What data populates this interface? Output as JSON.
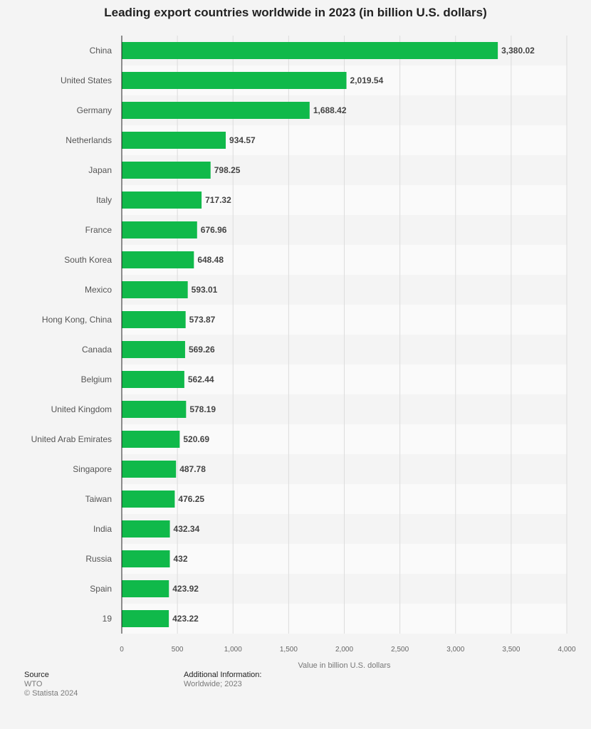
{
  "chart_data": {
    "type": "bar",
    "orientation": "horizontal",
    "title": "Leading export countries worldwide in 2023 (in billion U.S. dollars)",
    "xlabel": "Value in billion U.S. dollars",
    "ylabel": "",
    "xlim": [
      0,
      4000
    ],
    "ticks": [
      0,
      500,
      1000,
      1500,
      2000,
      2500,
      3000,
      3500,
      4000
    ],
    "tick_labels": [
      "0",
      "500",
      "1,000",
      "1,500",
      "2,000",
      "2,500",
      "3,000",
      "3,500",
      "4,000"
    ],
    "grid": true,
    "bar_color": "#10b94a",
    "categories": [
      "China",
      "United States",
      "Germany",
      "Netherlands",
      "Japan",
      "Italy",
      "France",
      "South Korea",
      "Mexico",
      "Hong Kong, China",
      "Canada",
      "Belgium",
      "United Kingdom",
      "United Arab Emirates",
      "Singapore",
      "Taiwan",
      "India",
      "Russia",
      "Spain",
      "19"
    ],
    "values": [
      3380.02,
      2019.54,
      1688.42,
      934.57,
      798.25,
      717.32,
      676.96,
      648.48,
      593.01,
      573.87,
      569.26,
      562.44,
      578.19,
      520.69,
      487.78,
      476.25,
      432.34,
      432,
      423.92,
      423.22
    ],
    "value_labels": [
      "3,380.02",
      "2,019.54",
      "1,688.42",
      "934.57",
      "798.25",
      "717.32",
      "676.96",
      "648.48",
      "593.01",
      "573.87",
      "569.26",
      "562.44",
      "578.19",
      "520.69",
      "487.78",
      "476.25",
      "432.34",
      "432",
      "423.92",
      "423.22"
    ]
  },
  "footer": {
    "source_heading": "Source",
    "source_name": "WTO",
    "copyright": "© Statista 2024",
    "additional_heading": "Additional Information:",
    "additional_text": "Worldwide; 2023"
  }
}
